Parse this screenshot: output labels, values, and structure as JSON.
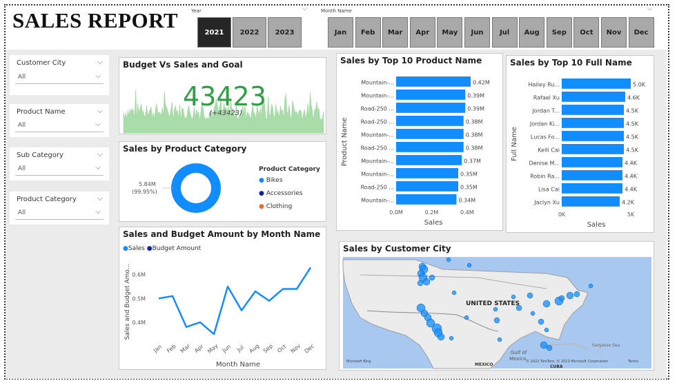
{
  "header": {
    "title": "SALES REPORT"
  },
  "year_slicer": {
    "label": "Year",
    "options": [
      "2021",
      "2022",
      "2023"
    ],
    "selected": "2021"
  },
  "month_slicer": {
    "label": "Month Name",
    "options": [
      "Jan",
      "Feb",
      "Mar",
      "Apr",
      "May",
      "Jun",
      "Jul",
      "Aug",
      "Sep",
      "Oct",
      "Nov",
      "Dec"
    ]
  },
  "filters": [
    {
      "label": "Customer City",
      "value": "All"
    },
    {
      "label": "Product Name",
      "value": "All"
    },
    {
      "label": "Sub Category",
      "value": "All"
    },
    {
      "label": "Product Category",
      "value": "All"
    }
  ],
  "kpi": {
    "title": "Budget Vs Sales and Goal",
    "value": "43423",
    "check": "✓",
    "delta": "(+43423)",
    "area_color": "#a8dca8",
    "value_color": "#2ea043"
  },
  "category_donut": {
    "title": "Sales by Product Category",
    "label_value": "5.84M",
    "label_pct": "(99.95%)",
    "legend_title": "Product Category",
    "legend": [
      {
        "name": "Bikes",
        "color": "#118dff"
      },
      {
        "name": "Accessories",
        "color": "#12239e"
      },
      {
        "name": "Clothing",
        "color": "#e66c37"
      }
    ]
  },
  "line_chart_text": {
    "title": "Sales and Budget Amount by Month Name",
    "legend": [
      {
        "name": "Sales",
        "color": "#118dff"
      },
      {
        "name": "Budget Amount",
        "color": "#12239e"
      }
    ]
  },
  "map": {
    "title": "Sales by Customer City",
    "label_us": "UNITED STATES",
    "label_mexico": "MEXICO",
    "label_cuba": "CUBA",
    "label_gulf": "Gulf of",
    "label_gulf2": "Mexico",
    "label_sargasso": "Sargasso Sea",
    "label_bing": "Microsoft Bing",
    "label_copy": "© 2022 TomTom, © 2023 Microsoft Corporation",
    "label_terms": "Terms"
  },
  "chart_data": [
    {
      "type": "bar",
      "title": "Sales by Top 10 Product Name",
      "xlabel": "Sales",
      "ylabel": "Product Name",
      "categories": [
        "Mountain-...",
        "Mountain-...",
        "Road-250 ...",
        "Road-250 ...",
        "Mountain-...",
        "Road-250 ...",
        "Mountain-...",
        "Mountain-...",
        "Road-250 ...",
        "Mountain-..."
      ],
      "values": [
        0.42,
        0.39,
        0.39,
        0.38,
        0.38,
        0.38,
        0.37,
        0.35,
        0.35,
        0.34
      ],
      "value_labels": [
        "0.42M",
        "0.39M",
        "0.39M",
        "0.38M",
        "0.38M",
        "0.38M",
        "0.37M",
        "0.35M",
        "0.35M",
        "0.34M"
      ],
      "xticks": [
        "0.0M",
        "0.2M",
        "0.4M"
      ],
      "xtick_values": [
        0,
        0.2,
        0.4
      ],
      "xlim": [
        0,
        0.42
      ],
      "color": "#118dff"
    },
    {
      "type": "bar",
      "title": "Sales by Top 10 Full Name",
      "xlabel": "Sales",
      "ylabel": "Full Name",
      "categories": [
        "Hailey Ru...",
        "Rafael Xu",
        "Jordan T...",
        "Jordan Ki...",
        "Lucas Fo...",
        "Kelli Cai",
        "Denise M...",
        "Robin Ra...",
        "Lisa Cai",
        "Jaclyn Xu"
      ],
      "values": [
        5.0,
        4.6,
        4.5,
        4.5,
        4.5,
        4.5,
        4.4,
        4.4,
        4.4,
        4.2
      ],
      "value_labels": [
        "5.0K",
        "4.6K",
        "4.5K",
        "4.5K",
        "4.5K",
        "4.5K",
        "4.4K",
        "4.4K",
        "4.4K",
        "4.2K"
      ],
      "xticks": [
        "0K",
        "5K"
      ],
      "xtick_values": [
        0,
        5
      ],
      "xlim": [
        0,
        5.0
      ],
      "color": "#118dff"
    },
    {
      "type": "line",
      "title": "Sales and Budget Amount by Month Name",
      "xlabel": "Month Name",
      "ylabel": "Sales and Budget Amo...",
      "categories": [
        "Jan",
        "Feb",
        "Mar",
        "Apr",
        "May",
        "Jun",
        "Jul",
        "Aug",
        "Sep",
        "Oct",
        "Nov",
        "Dec"
      ],
      "series": [
        {
          "name": "Sales",
          "values": [
            0.5,
            0.51,
            0.38,
            0.4,
            0.35,
            0.55,
            0.45,
            0.53,
            0.49,
            0.54,
            0.54,
            0.63
          ],
          "color": "#118dff"
        }
      ],
      "yticks": [
        "0.4M",
        "0.5M",
        "0.6M"
      ],
      "ytick_values": [
        0.4,
        0.5,
        0.6
      ],
      "ylim": [
        0.33,
        0.66
      ]
    },
    {
      "type": "pie",
      "title": "Sales by Product Category",
      "categories": [
        "Bikes",
        "Accessories",
        "Clothing"
      ],
      "values": [
        99.95,
        0.03,
        0.02
      ],
      "colors": [
        "#118dff",
        "#12239e",
        "#e66c37"
      ]
    }
  ]
}
